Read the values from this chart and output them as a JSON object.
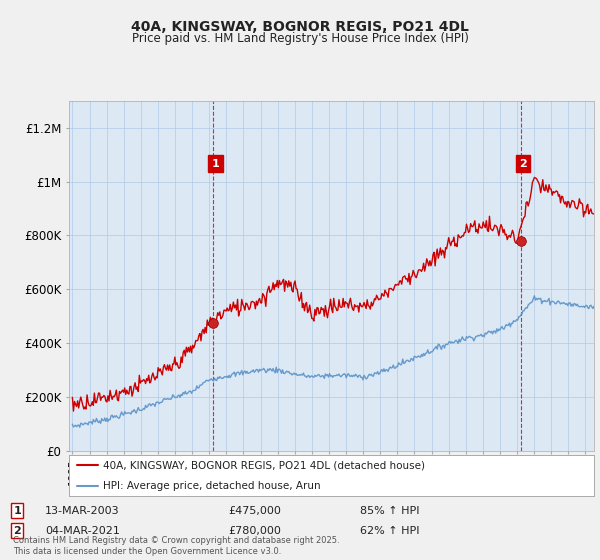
{
  "title_line1": "40A, KINGSWAY, BOGNOR REGIS, PO21 4DL",
  "title_line2": "Price paid vs. HM Land Registry's House Price Index (HPI)",
  "ylim": [
    0,
    1300000
  ],
  "yticks": [
    0,
    200000,
    400000,
    600000,
    800000,
    1000000,
    1200000
  ],
  "ytick_labels": [
    "£0",
    "£200K",
    "£400K",
    "£600K",
    "£800K",
    "£1M",
    "£1.2M"
  ],
  "background_color": "#f0f0f0",
  "plot_bg_color": "#dce9f5",
  "red_color": "#cc0000",
  "blue_color": "#6699cc",
  "sale1_year": 2003.21,
  "sale1_price": 475000,
  "sale2_year": 2021.21,
  "sale2_price": 780000,
  "legend_line1": "40A, KINGSWAY, BOGNOR REGIS, PO21 4DL (detached house)",
  "legend_line2": "HPI: Average price, detached house, Arun",
  "footer": "Contains HM Land Registry data © Crown copyright and database right 2025.\nThis data is licensed under the Open Government Licence v3.0.",
  "table_row1": [
    "1",
    "13-MAR-2003",
    "£475,000",
    "85% ↑ HPI"
  ],
  "table_row2": [
    "2",
    "04-MAR-2021",
    "£780,000",
    "62% ↑ HPI"
  ],
  "hpi_anchors_years": [
    1995,
    1996,
    1997,
    1998,
    1999,
    2000,
    2001,
    2002,
    2003,
    2004,
    2005,
    2006,
    2007,
    2008,
    2009,
    2010,
    2011,
    2012,
    2013,
    2014,
    2015,
    2016,
    2017,
    2018,
    2019,
    2020,
    2021,
    2022,
    2023,
    2024,
    2025
  ],
  "hpi_anchors_vals": [
    90000,
    105000,
    118000,
    135000,
    155000,
    178000,
    200000,
    220000,
    265000,
    278000,
    290000,
    300000,
    300000,
    285000,
    275000,
    280000,
    280000,
    275000,
    290000,
    318000,
    345000,
    372000,
    400000,
    418000,
    430000,
    450000,
    490000,
    565000,
    555000,
    545000,
    535000
  ],
  "red_anchors_years": [
    1995,
    1996,
    1997,
    1998,
    1999,
    2000,
    2001,
    2002,
    2003,
    2004,
    2005,
    2006,
    2007,
    2008,
    2009,
    2010,
    2011,
    2012,
    2013,
    2014,
    2015,
    2016,
    2017,
    2018,
    2019,
    2020,
    2021,
    2022,
    2023,
    2024,
    2025
  ],
  "red_anchors_vals": [
    175000,
    185000,
    200000,
    220000,
    245000,
    280000,
    320000,
    380000,
    475000,
    520000,
    540000,
    560000,
    630000,
    600000,
    510000,
    530000,
    545000,
    535000,
    570000,
    620000,
    660000,
    700000,
    760000,
    820000,
    840000,
    820000,
    780000,
    1000000,
    960000,
    920000,
    890000
  ]
}
